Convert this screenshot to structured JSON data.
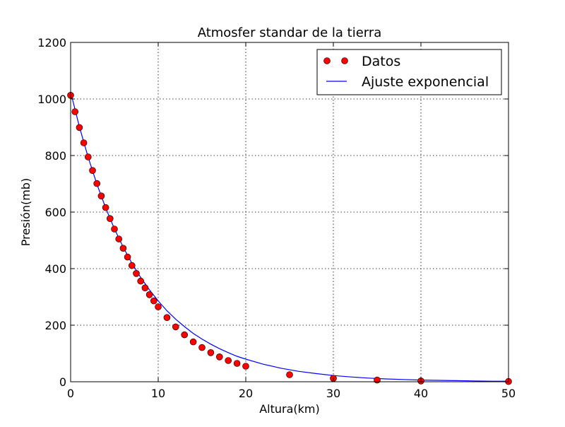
{
  "chart_data": {
    "type": "scatter",
    "title": "Atmosfer standar de la tierra",
    "xlabel": "Altura(km)",
    "ylabel": "Presión(mb)",
    "xlim": [
      0,
      50
    ],
    "ylim": [
      0,
      1200
    ],
    "xticks": [
      0,
      10,
      20,
      30,
      40,
      50
    ],
    "yticks": [
      0,
      200,
      400,
      600,
      800,
      1000,
      1200
    ],
    "grid": true,
    "legend_position": "top-right",
    "series": [
      {
        "name": "Datos",
        "kind": "markers",
        "marker": "circle",
        "color": "#ff0000",
        "x": [
          0,
          0.5,
          1,
          1.5,
          2,
          2.5,
          3,
          3.5,
          4,
          4.5,
          5,
          5.5,
          6,
          6.5,
          7,
          7.5,
          8,
          8.5,
          9,
          9.5,
          10,
          11,
          12,
          13,
          14,
          15,
          16,
          17,
          18,
          19,
          20,
          25,
          30,
          35,
          40,
          50
        ],
        "y": [
          1013,
          955,
          899,
          845,
          795,
          747,
          701,
          657,
          616,
          577,
          540,
          505,
          472,
          441,
          411,
          383,
          356,
          332,
          308,
          286,
          265,
          227,
          194,
          166,
          141,
          121,
          103,
          88,
          75,
          65,
          55,
          25,
          12,
          6,
          3,
          1
        ]
      },
      {
        "name": "Ajuste exponencial",
        "kind": "line",
        "color": "#0000ff",
        "x": [
          0,
          1,
          2,
          3,
          4,
          5,
          6,
          7,
          8,
          9,
          10,
          11,
          12,
          13,
          14,
          15,
          16,
          17,
          18,
          19,
          20,
          22,
          24,
          26,
          28,
          30,
          32,
          34,
          36,
          38,
          40,
          42,
          44,
          46,
          48,
          50
        ],
        "y": [
          1025,
          902,
          794,
          699,
          615,
          541,
          476,
          419,
          369,
          325,
          286,
          251,
          221,
          195,
          171,
          151,
          133,
          117,
          103,
          90,
          80,
          62,
          48,
          37,
          29,
          22,
          17,
          13,
          10,
          8,
          6,
          5,
          4,
          3,
          2,
          2
        ]
      }
    ]
  }
}
